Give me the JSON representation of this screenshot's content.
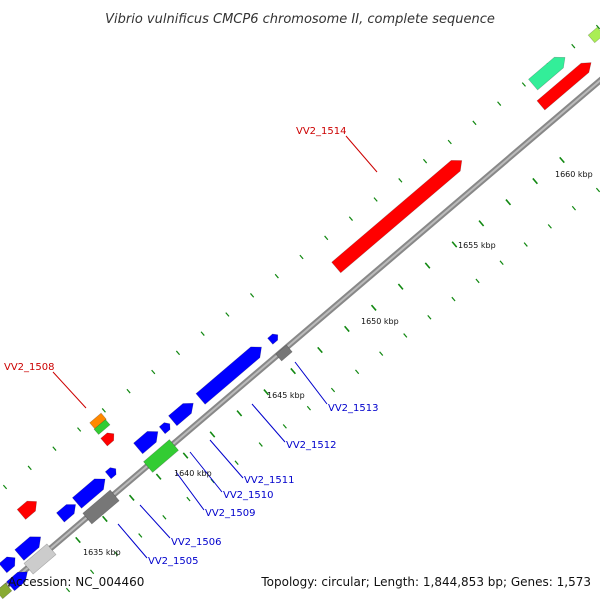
{
  "title": "Vibrio vulnificus CMCP6 chromosome II, complete sequence",
  "footer": {
    "accession": "Accession: NC_004460",
    "summary": "Topology: circular; Length: 1,844,853 bp; Genes: 1,573"
  },
  "scale_labels": [
    "1635 kbp",
    "1640 kbp",
    "1645 kbp",
    "1650 kbp",
    "1655 kbp",
    "1660 kbp"
  ],
  "gene_labels": {
    "vv2_1514": "VV2_1514",
    "vv2_1508": "VV2_1508",
    "vv2_1513": "VV2_1513",
    "vv2_1512": "VV2_1512",
    "vv2_1511": "VV2_1511",
    "vv2_1510": "VV2_1510",
    "vv2_1509": "VV2_1509",
    "vv2_1506": "VV2_1506",
    "vv2_1505": "VV2_1505"
  },
  "colors": {
    "highlight_label": "#cc0000",
    "label": "#0000cc",
    "red_gene": "#ff0000",
    "blue_gene": "#0000ff",
    "green_gene": "#33cc33",
    "teal_gene": "#33ee99",
    "gray_gene": "#777777",
    "light_gray_gene": "#cccccc",
    "orange_gene": "#ff8800",
    "backbone": "#999999",
    "tick": "#118811"
  }
}
